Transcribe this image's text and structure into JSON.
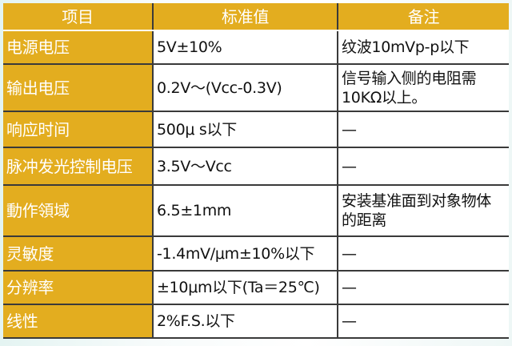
{
  "header": {
    "item": "项目",
    "standard": "标准值",
    "note": "备注"
  },
  "rows": [
    {
      "item": "电源电压",
      "standard": "5V±10%",
      "note": "纹波10mVp-p以下"
    },
    {
      "item": "输出电压",
      "standard": "0.2V～(Vcc-0.3V)",
      "note": "信号输入侧的电阻需10KΩ以上。"
    },
    {
      "item": "响应时间",
      "standard": "500μ s以下",
      "note": "—"
    },
    {
      "item": "脉冲发光控制电压",
      "standard": "3.5V～Vcc",
      "note": "—"
    },
    {
      "item": "動作領域",
      "standard": "6.5±1mm",
      "note": "安装基准面到对象物体的距离"
    },
    {
      "item": "灵敏度",
      "standard": "-1.4mV/μm±10%以下",
      "note": "—"
    },
    {
      "item": "分辨率",
      "standard": "±10μm以下(Ta＝25℃)",
      "note": "—"
    },
    {
      "item": "线性",
      "standard": "2%F.S.以下",
      "note": "—"
    }
  ],
  "colors": {
    "header_bg": "#e3ad1f",
    "header_text": "#ffffff"
  }
}
